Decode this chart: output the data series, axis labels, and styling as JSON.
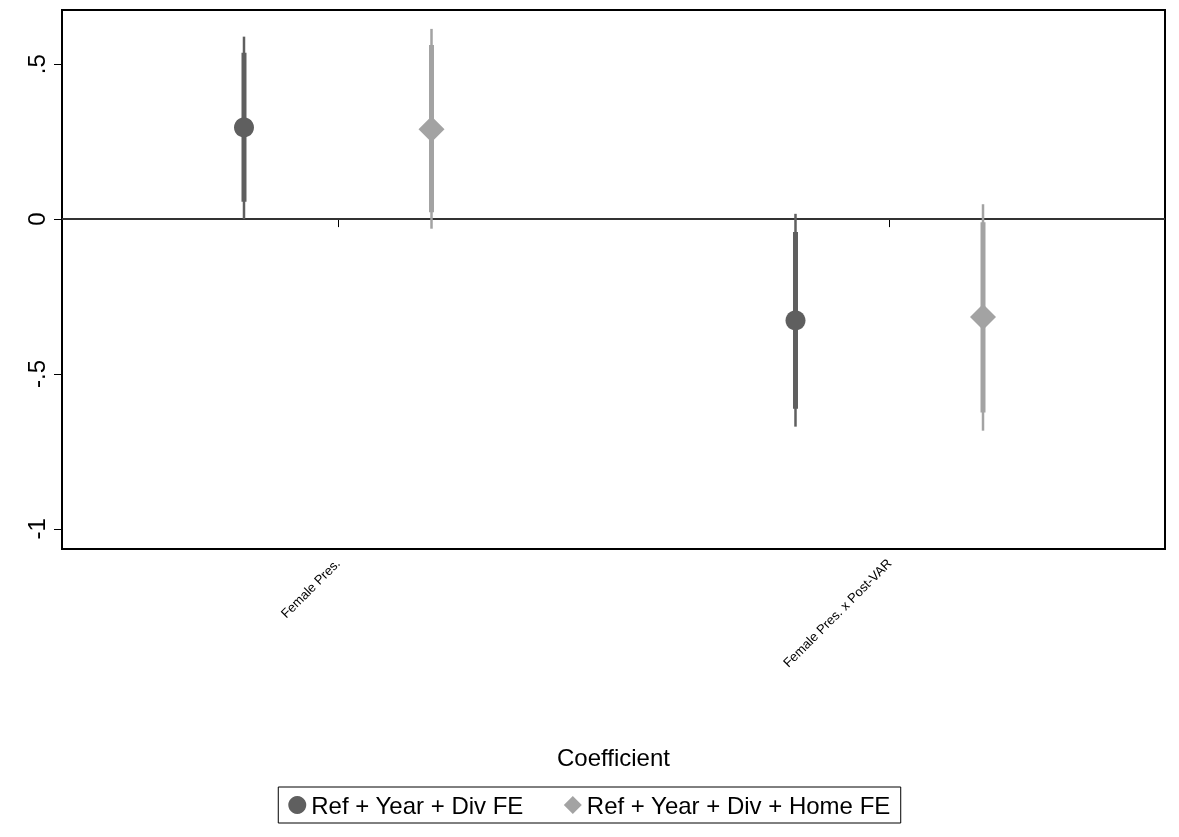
{
  "chart_data": {
    "type": "scatter",
    "xlabel": "Coefficient",
    "categories": [
      "Female Pres.",
      "Female Pres. x Post-VAR"
    ],
    "series": [
      {
        "name": "Ref + Year + Div FE",
        "color": "#5f5f5f",
        "marker": "circle",
        "values": [
          0.296,
          -0.327
        ],
        "errors": [
          [
            0.0,
            0.589
          ],
          [
            -0.67,
            0.017
          ]
        ]
      },
      {
        "type": "bar",
        "color": "#5f5f5f",
        "base": [
          0.056,
          -0.612
        ],
        "values": [
          0.481,
          0.57
        ]
      },
      {
        "name": "Ref + Year + Div + Home FE",
        "color": "#a3a3a3",
        "marker": "diamond",
        "values": [
          0.29,
          -0.316
        ],
        "errors": [
          [
            -0.031,
            0.614
          ],
          [
            -0.683,
            0.048
          ]
        ]
      },
      {
        "type": "bar",
        "color": "#a3a3a3",
        "base": [
          0.022,
          -0.624
        ],
        "values": [
          0.54,
          0.614
        ]
      }
    ],
    "ylim": [
      -1.065,
      0.675
    ],
    "yticks": [
      {
        "value": -1,
        "label": "-1"
      },
      {
        "value": -0.5,
        "label": "-.5"
      },
      {
        "value": 0,
        "label": "0"
      },
      {
        "value": 0.5,
        "label": ".5"
      }
    ],
    "ref_lines": [
      {
        "axis": "y",
        "value": 0,
        "color": "#333333"
      }
    ],
    "grid": false,
    "legend": "bottom"
  }
}
